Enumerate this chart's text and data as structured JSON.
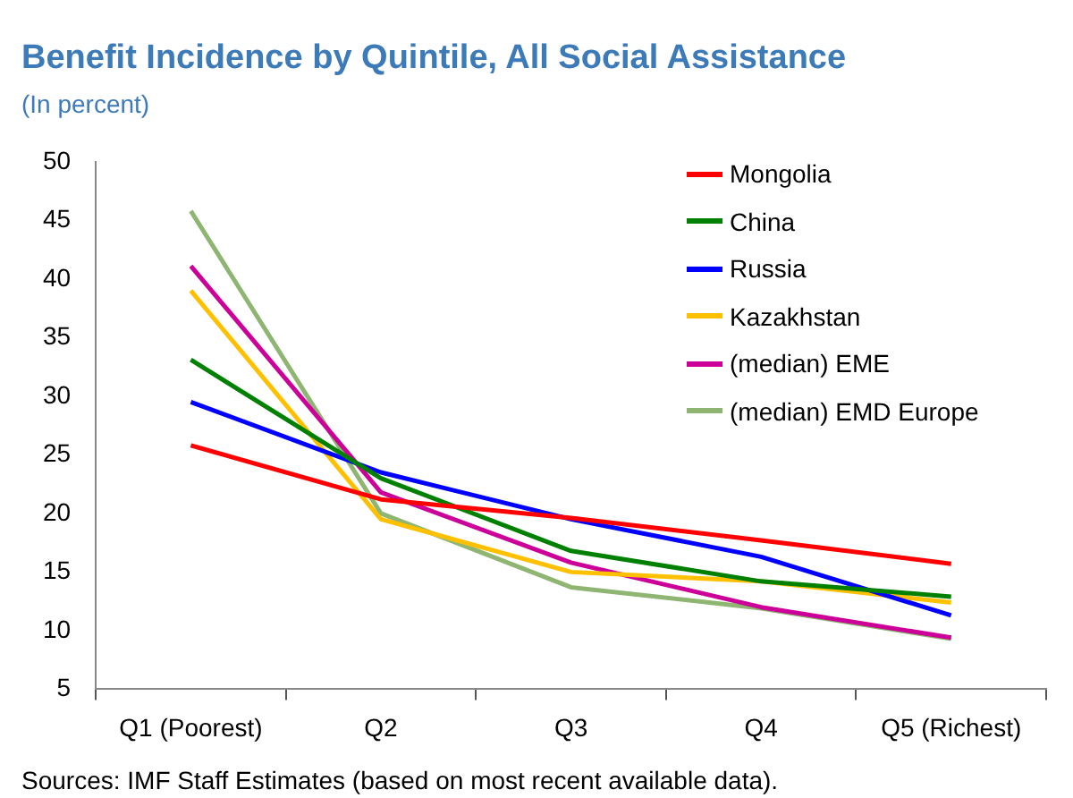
{
  "chart_data": {
    "type": "line",
    "title": "Benefit Incidence by Quintile, All Social Assistance",
    "subtitle": "(In percent)",
    "categories": [
      "Q1 (Poorest)",
      "Q2",
      "Q3",
      "Q4",
      "Q5 (Richest)"
    ],
    "series": [
      {
        "name": "Mongolia",
        "color": "#ff0000",
        "values": [
          25.8,
          21.2,
          19.6,
          17.7,
          15.7
        ]
      },
      {
        "name": "China",
        "color": "#008000",
        "values": [
          33.1,
          23.0,
          16.8,
          14.2,
          12.9
        ]
      },
      {
        "name": "Russia",
        "color": "#0000ff",
        "values": [
          29.5,
          23.5,
          19.5,
          16.3,
          11.3
        ]
      },
      {
        "name": "Kazakhstan",
        "color": "#ffc000",
        "values": [
          39.0,
          19.5,
          15.0,
          14.2,
          12.4
        ]
      },
      {
        "name": "(median) EME",
        "color": "#cc0099",
        "values": [
          41.1,
          21.8,
          15.8,
          12.0,
          9.4
        ]
      },
      {
        "name": "(median) EMD Europe",
        "color": "#8fb573",
        "values": [
          45.8,
          20.0,
          13.7,
          11.9,
          9.3
        ]
      }
    ],
    "ylim": [
      5,
      50
    ],
    "yticks": [
      5,
      10,
      15,
      20,
      25,
      30,
      35,
      40,
      45,
      50
    ],
    "grid": false,
    "legend": "top right",
    "marker": "none",
    "line_style": "solid",
    "annotations": [
      "Sources: IMF Staff Estimates (based on most recent available data)."
    ]
  }
}
